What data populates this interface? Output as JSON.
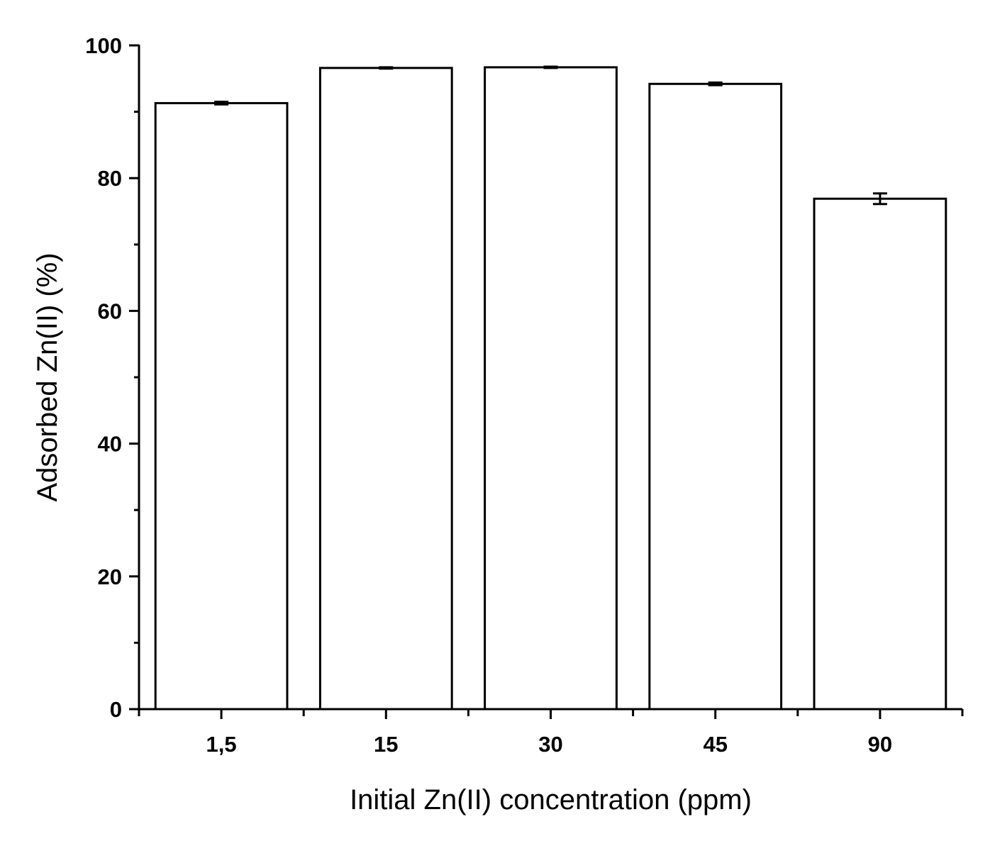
{
  "chart_data": {
    "type": "bar",
    "title": "",
    "xlabel": "Initial Zn(II) concentration (ppm)",
    "ylabel": "Adsorbed Zn(II) (%)",
    "categories": [
      "1,5",
      "15",
      "30",
      "45",
      "90"
    ],
    "values": [
      91.3,
      96.6,
      96.7,
      94.2,
      76.9
    ],
    "errors": [
      0.2,
      0.1,
      0.1,
      0.2,
      0.8
    ],
    "ylim": [
      0,
      100
    ],
    "yticks": [
      0,
      20,
      40,
      60,
      80,
      100
    ],
    "ytick_labels": [
      "0",
      "20",
      "40",
      "60",
      "80",
      "100"
    ],
    "grid": false,
    "legend": "none",
    "colors": {
      "bar_fill": "#ffffff",
      "bar_stroke": "#000000",
      "axis": "#000000"
    }
  }
}
